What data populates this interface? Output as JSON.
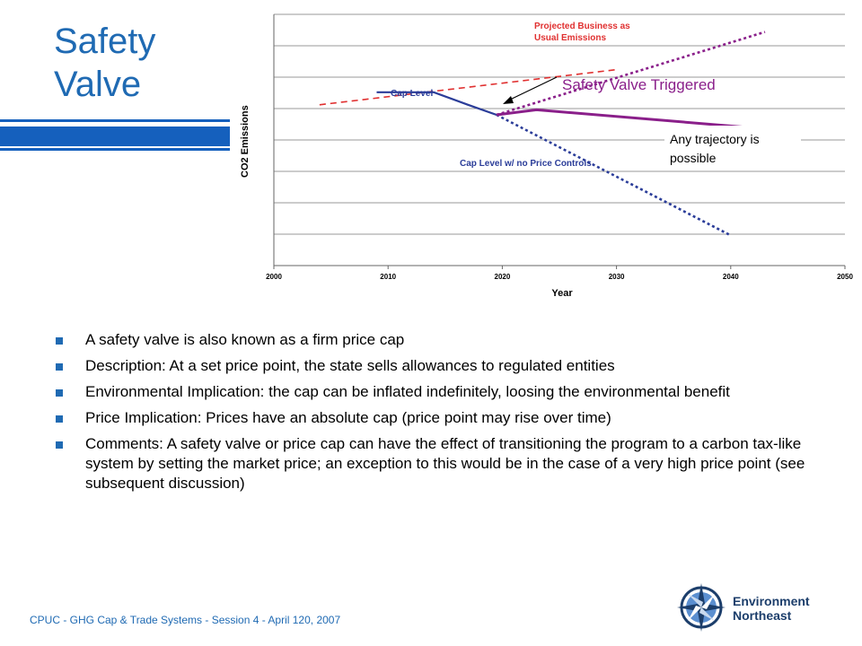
{
  "slide": {
    "title_line1": "Safety",
    "title_line2": "Valve",
    "accent_color": "#1f6ab3",
    "bar_color": "#1560bd"
  },
  "chart_data": {
    "type": "line",
    "xlabel": "Year",
    "ylabel": "CO2 Emissions",
    "xlim": [
      2000,
      2050
    ],
    "x_ticks": [
      "2000",
      "2010",
      "2020",
      "2030",
      "2040",
      "2050"
    ],
    "y_tick_labels": false,
    "grid": true,
    "series": [
      {
        "name": "Projected Business as Usual Emissions",
        "style": "dashed",
        "color": "#e03030",
        "points": [
          [
            2004,
            6.4
          ],
          [
            2030,
            7.8
          ]
        ]
      },
      {
        "name": "Cap Level",
        "style": "solid",
        "color": "#2b3d99",
        "points": [
          [
            2009,
            6.9
          ],
          [
            2014,
            6.9
          ],
          [
            2017,
            6.4
          ],
          [
            2019.5,
            6.0
          ]
        ]
      },
      {
        "name": "Cap Level w/ no Price Controls",
        "style": "dotted",
        "color": "#2b3d99",
        "points": [
          [
            2019.5,
            6.0
          ],
          [
            2040,
            1.2
          ]
        ]
      },
      {
        "name": "",
        "style": "dotted",
        "color": "#8a1f8a",
        "points": [
          [
            2019.5,
            6.0
          ],
          [
            2043,
            9.3
          ]
        ]
      },
      {
        "name": "Safety Valve Triggered",
        "style": "solid",
        "color": "#8a1f8a",
        "points": [
          [
            2019.5,
            6.0
          ],
          [
            2023,
            6.2
          ],
          [
            2041.5,
            5.5
          ]
        ]
      }
    ],
    "annotations": {
      "bau_label_line1": "Projected Business as",
      "bau_label_line2": "Usual Emissions",
      "cap_label": "Cap Level",
      "no_price_controls_label": "Cap Level w/ no Price Controls",
      "safety_valve_label": "Safety Valve Triggered",
      "trajectory_line1": "Any trajectory is",
      "trajectory_line2": "possible"
    }
  },
  "bullets": [
    "A safety valve is also known as a firm price cap",
    "Description: At a set price point, the state sells allowances to regulated entities",
    "Environmental Implication: the cap can be inflated indefinitely, loosing the environmental benefit",
    "Price Implication: Prices have an absolute cap (price point may rise over time)",
    "Comments: A safety valve or price cap can have the effect of transitioning the program to a carbon tax-like system by setting the market price; an exception to this would be in the case of a very high price point (see subsequent discussion)"
  ],
  "footer": {
    "text": "CPUC - GHG Cap & Trade Systems - Session 4 - April 120, 2007"
  },
  "logo": {
    "line1": "Environment",
    "line2": "Northeast"
  }
}
